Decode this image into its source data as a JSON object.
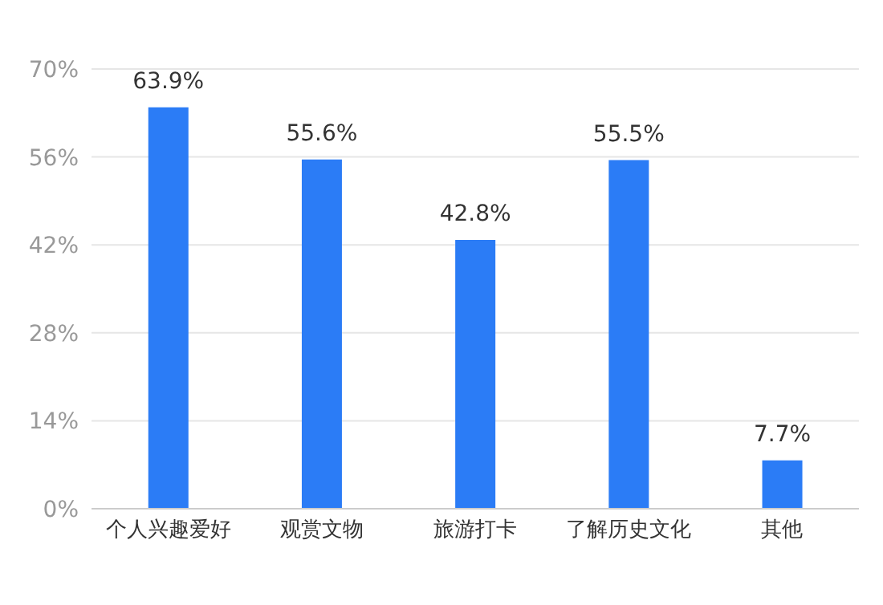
{
  "chart_data": {
    "type": "bar",
    "categories": [
      "个人兴趣爱好",
      "观赏文物",
      "旅游打卡",
      "了解历史文化",
      "其他"
    ],
    "values": [
      63.9,
      55.6,
      42.8,
      55.5,
      7.7
    ],
    "value_labels": [
      "63.9%",
      "55.6%",
      "42.8%",
      "55.5%",
      "7.7%"
    ],
    "color": "#2b7cf6",
    "ylim": [
      0,
      70
    ],
    "yticks": [
      {
        "value": 0,
        "label": "0%"
      },
      {
        "value": 14,
        "label": "14%"
      },
      {
        "value": 28,
        "label": "28%"
      },
      {
        "value": 42,
        "label": "42%"
      },
      {
        "value": 56,
        "label": "56%"
      },
      {
        "value": 70,
        "label": "70%"
      }
    ],
    "grid": "y"
  }
}
